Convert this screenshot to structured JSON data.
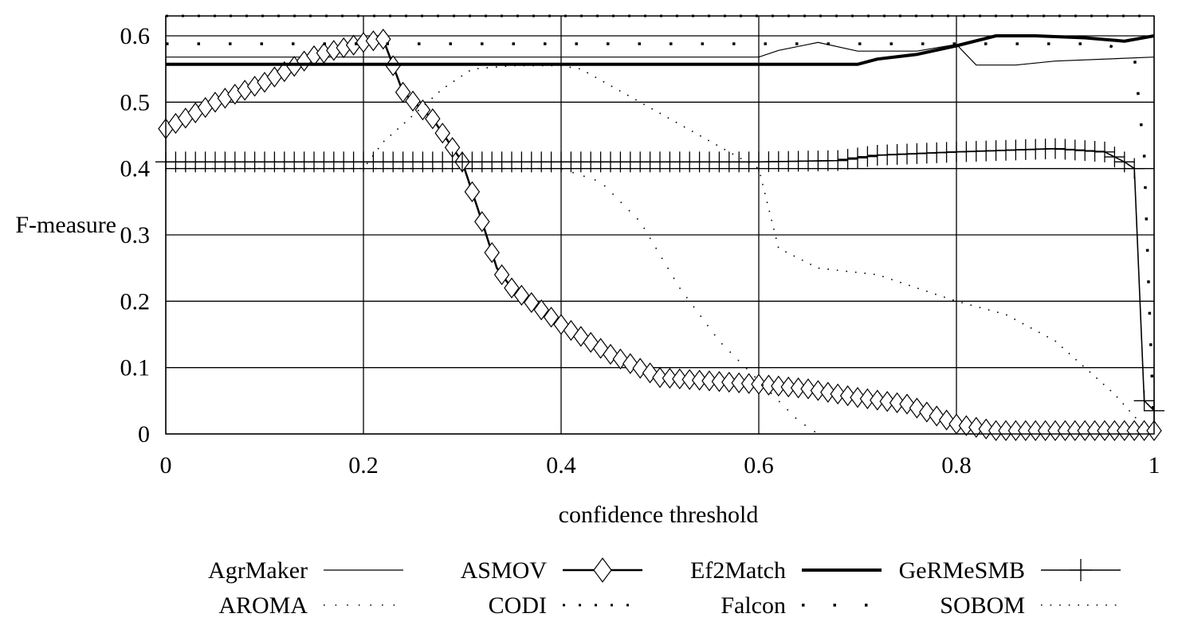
{
  "chart_data": {
    "type": "line",
    "title": "",
    "xlabel": "confidence threshold",
    "ylabel": "F-measure",
    "xlim": [
      0,
      1
    ],
    "ylim": [
      0,
      0.63
    ],
    "x_ticks": [
      0,
      0.2,
      0.4,
      0.6,
      0.8,
      1
    ],
    "x_tick_labels": [
      "0",
      "0.2",
      "0.4",
      "0.6",
      "0.8",
      "1"
    ],
    "y_ticks": [
      0,
      0.1,
      0.2,
      0.3,
      0.4,
      0.5,
      0.6
    ],
    "y_tick_labels": [
      "0",
      "0.1",
      "0.2",
      "0.3",
      "0.4",
      "0.5",
      "0.6"
    ],
    "grid": true,
    "legend_position": "bottom",
    "series": [
      {
        "name": "AgrMaker",
        "style": "thin-line",
        "x": [
          0,
          0.6,
          0.62,
          0.66,
          0.7,
          0.76,
          0.8,
          0.82,
          0.86,
          0.9,
          1.0
        ],
        "y": [
          0.568,
          0.568,
          0.578,
          0.59,
          0.577,
          0.577,
          0.587,
          0.556,
          0.556,
          0.562,
          0.568
        ]
      },
      {
        "name": "ASMOV",
        "style": "line-diamond",
        "x": [
          0,
          0.05,
          0.1,
          0.15,
          0.2,
          0.22,
          0.24,
          0.27,
          0.3,
          0.32,
          0.335,
          0.35,
          0.4,
          0.45,
          0.5,
          0.55,
          0.6,
          0.65,
          0.7,
          0.75,
          0.8,
          0.84,
          0.9,
          0.95,
          1.0
        ],
        "y": [
          0.46,
          0.5,
          0.53,
          0.57,
          0.59,
          0.595,
          0.515,
          0.475,
          0.41,
          0.32,
          0.25,
          0.22,
          0.165,
          0.12,
          0.085,
          0.08,
          0.075,
          0.068,
          0.055,
          0.045,
          0.015,
          0.005,
          0.005,
          0.005,
          0.005
        ]
      },
      {
        "name": "Ef2Match",
        "style": "thick-line",
        "x": [
          0,
          0.7,
          0.72,
          0.76,
          0.8,
          0.84,
          0.88,
          0.93,
          0.97,
          1.0
        ],
        "y": [
          0.557,
          0.557,
          0.565,
          0.572,
          0.585,
          0.6,
          0.6,
          0.597,
          0.592,
          0.6
        ]
      },
      {
        "name": "GeRMeSMB",
        "style": "line-plus",
        "x": [
          0,
          0.6,
          0.68,
          0.72,
          0.8,
          0.9,
          0.95,
          0.97,
          0.98,
          0.99,
          1.0
        ],
        "y": [
          0.41,
          0.41,
          0.412,
          0.42,
          0.425,
          0.43,
          0.425,
          0.41,
          0.4,
          0.05,
          0.035
        ]
      },
      {
        "name": "AROMA",
        "style": "sparse-dots",
        "x": [
          0,
          0.2,
          0.3,
          0.4,
          0.44,
          0.48,
          0.52,
          0.56,
          0.6,
          0.62,
          0.64,
          0.66
        ],
        "y": [
          0.4,
          0.4,
          0.4,
          0.4,
          0.38,
          0.32,
          0.22,
          0.14,
          0.08,
          0.05,
          0.02,
          0.0
        ]
      },
      {
        "name": "CODI",
        "style": "dotted",
        "x": [
          0,
          1.0
        ],
        "y": [
          0.63,
          0.63
        ]
      },
      {
        "name": "Falcon",
        "style": "large-dots",
        "x": [
          0,
          0.4,
          0.6,
          0.8,
          0.95,
          0.98,
          0.99,
          0.995,
          1.0
        ],
        "y": [
          0.588,
          0.588,
          0.588,
          0.588,
          0.588,
          0.57,
          0.42,
          0.2,
          0.0
        ]
      },
      {
        "name": "SOBOM",
        "style": "fine-dots",
        "x": [
          0,
          0.2,
          0.22,
          0.25,
          0.28,
          0.31,
          0.35,
          0.4,
          0.42,
          0.6,
          0.61,
          0.62,
          0.66,
          0.72,
          0.76,
          0.8,
          0.85,
          0.9,
          0.93,
          0.96,
          0.99
        ],
        "y": [
          0.4,
          0.4,
          0.44,
          0.48,
          0.52,
          0.55,
          0.555,
          0.555,
          0.55,
          0.4,
          0.34,
          0.28,
          0.25,
          0.24,
          0.22,
          0.2,
          0.18,
          0.14,
          0.1,
          0.06,
          0.01
        ]
      }
    ]
  }
}
